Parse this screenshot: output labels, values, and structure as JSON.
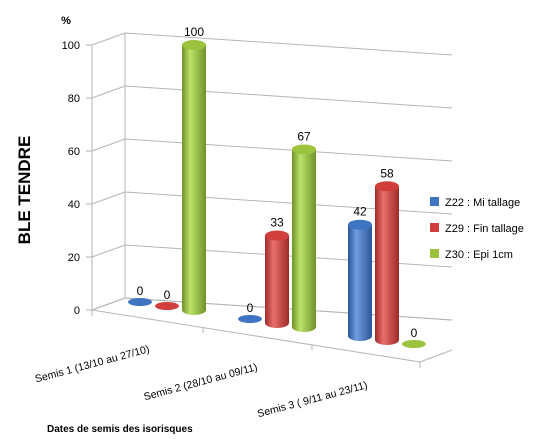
{
  "colors": {
    "series": [
      "#3f74c2",
      "#d13f3c",
      "#9cc33d"
    ],
    "series_dark": [
      "#2b5696",
      "#9e2b28",
      "#6f9228"
    ],
    "series_light": [
      "#6f9be0",
      "#ea6f6b",
      "#bde36a"
    ],
    "grid": "#b5b5b5",
    "text": "#000000"
  },
  "chart_data": {
    "type": "bar",
    "subtype": "3d-cylinder",
    "ylabel": "BLE TENDRE",
    "y_unit": "%",
    "xlabel": "Dates de semis des isorisques",
    "categories": [
      "Semis 1 (13/10 au 27/10)",
      "Semis 2 (28/10 au 09/11)",
      "Semis 3 ( 9/11 au 23/11)"
    ],
    "ylim": [
      0,
      100
    ],
    "yticks": [
      "0",
      "20",
      "40",
      "60",
      "80",
      "100"
    ],
    "grid": true,
    "legend_position": "right",
    "series": [
      {
        "name": "Z22 : Mi tallage",
        "values": [
          0,
          0,
          42
        ],
        "labels": [
          "0",
          "0",
          "42"
        ]
      },
      {
        "name": "Z29 : Fin tallage",
        "values": [
          0,
          33,
          58
        ],
        "labels": [
          "0",
          "33",
          "58"
        ]
      },
      {
        "name": "Z30 : Epi 1cm",
        "values": [
          100,
          67,
          0
        ],
        "labels": [
          "100",
          "67",
          "0"
        ]
      }
    ]
  }
}
